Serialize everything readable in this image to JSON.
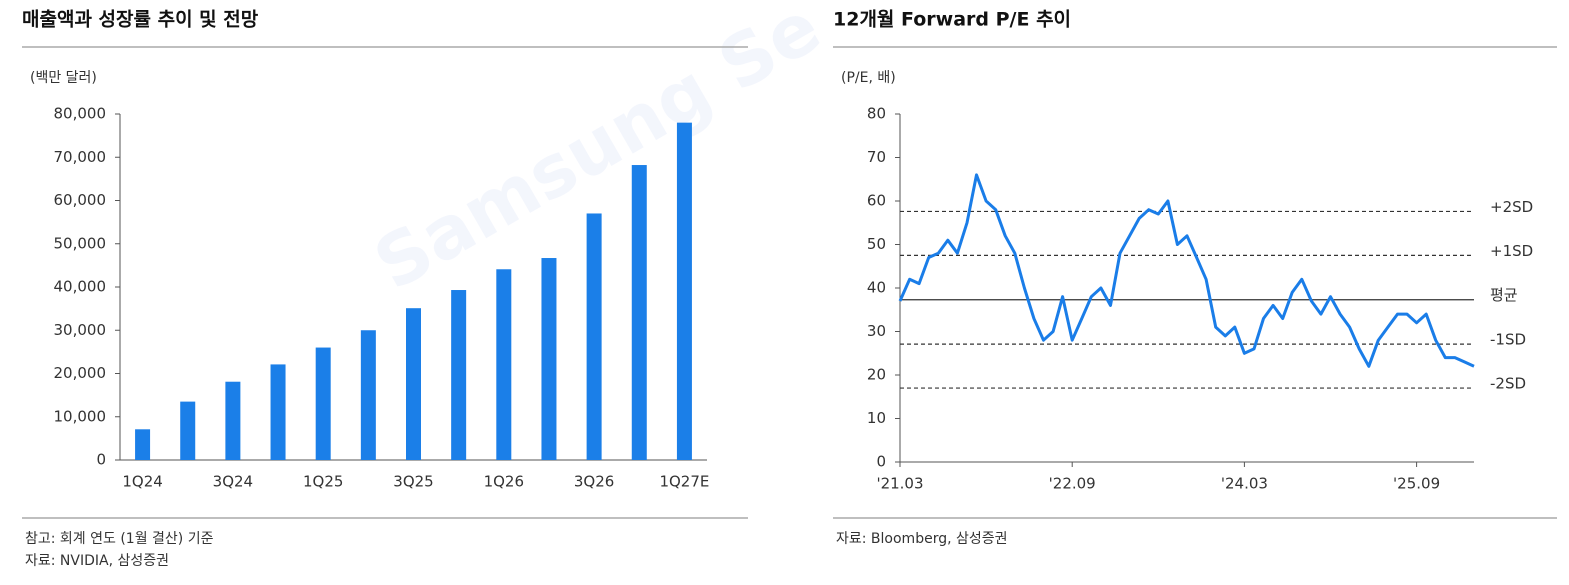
{
  "chart_data": [
    {
      "type": "bar",
      "title": "매출액과 성장률 추이 및 전망",
      "ylabel": "(백만 달러)",
      "categories": [
        "1Q24",
        null,
        "3Q24",
        null,
        "1Q25",
        null,
        "3Q25",
        null,
        "1Q26",
        null,
        "3Q26",
        null,
        "1Q27E"
      ],
      "values": [
        7100,
        13500,
        18100,
        22100,
        26000,
        30000,
        35100,
        39300,
        44100,
        46700,
        57000,
        68200,
        78000
      ],
      "color": "#1b7fe8",
      "ylim": [
        0,
        80000
      ],
      "yticks": [
        0,
        {
          "value": 10000,
          "label": "10,000"
        },
        {
          "value": 20000,
          "label": "20,000"
        },
        {
          "value": 30000,
          "label": "30,000"
        },
        {
          "value": 40000,
          "label": "40,000"
        },
        {
          "value": 50000,
          "label": "50,000"
        },
        {
          "value": 60000,
          "label": "60,000"
        },
        {
          "value": 70000,
          "label": "70,000"
        },
        {
          "value": 80000,
          "label": "80,000"
        }
      ],
      "notes": [
        "참고: 회계 연도 (1월 결산) 기준",
        "자료: NVIDIA, 삼성증권"
      ]
    },
    {
      "type": "line",
      "title": "12개월 Forward P/E 추이",
      "ylabel": "(P/E, 배)",
      "x": [
        "2021-03",
        "2021-04",
        "2021-05",
        "2021-06",
        "2021-07",
        "2021-08",
        "2021-09",
        "2021-10",
        "2021-11",
        "2021-12",
        "2022-01",
        "2022-02",
        "2022-03",
        "2022-04",
        "2022-05",
        "2022-06",
        "2022-07",
        "2022-08",
        "2022-09",
        "2022-10",
        "2022-11",
        "2022-12",
        "2023-01",
        "2023-02",
        "2023-03",
        "2023-04",
        "2023-05",
        "2023-06",
        "2023-07",
        "2023-08",
        "2023-09",
        "2023-10",
        "2023-11",
        "2023-12",
        "2024-01",
        "2024-02",
        "2024-03",
        "2024-04",
        "2024-05",
        "2024-06",
        "2024-07",
        "2024-08",
        "2024-09",
        "2024-10",
        "2024-11",
        "2024-12",
        "2025-01",
        "2025-02",
        "2025-03",
        "2025-04",
        "2025-05",
        "2025-06",
        "2025-07",
        "2025-08",
        "2025-09",
        "2025-10",
        "2025-11",
        "2025-12",
        "2026-01",
        "2026-02",
        "2026-03"
      ],
      "values": [
        37,
        42,
        41,
        47,
        48,
        51,
        48,
        55,
        66,
        60,
        58,
        52,
        48,
        40,
        33,
        28,
        30,
        38,
        28,
        33,
        38,
        40,
        36,
        48,
        52,
        56,
        58,
        57,
        60,
        50,
        52,
        47,
        42,
        31,
        29,
        31,
        25,
        26,
        33,
        36,
        33,
        39,
        42,
        37,
        34,
        38,
        34,
        31,
        26,
        22,
        28,
        31,
        34,
        34,
        32,
        34,
        28,
        24,
        24,
        23,
        22
      ],
      "color": "#1a7de8",
      "xlim": [
        "2021-03",
        "2026-03"
      ],
      "ylim": [
        0,
        80
      ],
      "xticks": [
        {
          "value": "2021-03",
          "label": "'21.03"
        },
        {
          "value": "2022-09",
          "label": "'22.09"
        },
        {
          "value": "2024-03",
          "label": "'24.03"
        },
        {
          "value": "2025-09",
          "label": "'25.09"
        }
      ],
      "yticks": [
        0,
        10,
        20,
        30,
        40,
        50,
        60,
        70,
        80
      ],
      "reference_lines": [
        {
          "label": "+2SD",
          "value": 57.6,
          "style": "dashed"
        },
        {
          "label": "+1SD",
          "value": 47.5,
          "style": "dashed"
        },
        {
          "label": "평균",
          "value": 37.3,
          "style": "solid"
        },
        {
          "label": "-1SD",
          "value": 27.1,
          "style": "dashed"
        },
        {
          "label": "-2SD",
          "value": 17,
          "style": "dashed"
        }
      ],
      "notes": [
        "자료: Bloomberg, 삼성증권"
      ]
    }
  ],
  "watermark": "Samsung Se"
}
